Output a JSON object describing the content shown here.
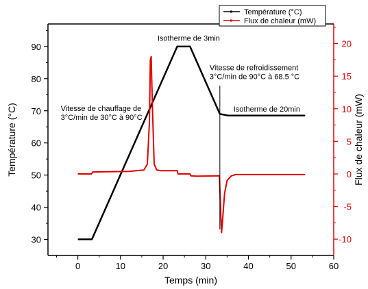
{
  "chart_data": {
    "type": "line",
    "xlabel": "Temps (min)",
    "ylabel_left": "Température (°C)",
    "ylabel_right": "Flux de chaleur (mW)",
    "xlim": [
      -7,
      60
    ],
    "ylim_left": [
      25,
      97
    ],
    "ylim_right": [
      -12.5,
      23
    ],
    "x_ticks": [
      0,
      10,
      20,
      30,
      40,
      50,
      60
    ],
    "y_left_ticks": [
      30,
      40,
      50,
      60,
      70,
      80,
      90
    ],
    "y_right_ticks": [
      -10,
      -5,
      0,
      5,
      10,
      15,
      20
    ],
    "grid": false,
    "legend_position": "top-right",
    "colors": {
      "temperature": "#000000",
      "heat_flow": "#e00000"
    },
    "series": [
      {
        "name": "Température (°C)",
        "axis": "left",
        "x": [
          0,
          3.3,
          23.3,
          26.3,
          33.3,
          35.3,
          53.3
        ],
        "y": [
          30,
          30,
          90,
          90,
          69,
          68.5,
          68.5
        ]
      },
      {
        "name": "Flux de chaleur (mW)",
        "axis": "right",
        "x": [
          0,
          3.2,
          3.5,
          12,
          15.5,
          16.3,
          16.8,
          17.0,
          17.2,
          17.5,
          17.9,
          18.5,
          19.5,
          23.3,
          23.5,
          26.3,
          26.5,
          28,
          33.2,
          33.4,
          33.7,
          34.0,
          34.4,
          35,
          36,
          37,
          53.3
        ],
        "y": [
          0,
          0,
          0.3,
          0.4,
          0.6,
          1.5,
          8,
          17.5,
          18,
          10,
          1.5,
          0.6,
          0.5,
          0.5,
          0,
          0,
          -0.3,
          -0.35,
          -0.3,
          -4,
          -9,
          -6.5,
          -3,
          -1,
          -0.3,
          -0.1,
          -0.1
        ]
      }
    ],
    "annotations": [
      {
        "text": "Isotherme de 3min",
        "lines": [
          "Isotherme de 3min"
        ],
        "x": 26,
        "y": 91.8,
        "anchor": "middle"
      },
      {
        "text": "Vitesse de refroidissement 3°C/min de 90°C à 68.5 °C",
        "lines": [
          "Vitesse de refroidissement",
          "3°C/min de 90°C à 68.5 °C"
        ],
        "x": 30.9,
        "y": 82.6,
        "anchor": "start"
      },
      {
        "text": "Isotherme de 20min",
        "lines": [
          "Isotherme de 20min"
        ],
        "x": 36.5,
        "y": 69.7,
        "anchor": "start"
      },
      {
        "text": "Vitesse de chauffage de 3°C/min de 30°C à 90°C",
        "lines": [
          "Vitesse de chauffage de",
          "3°C/min de 30°C à 90°C"
        ],
        "x": -4,
        "y": 70,
        "anchor": "start"
      }
    ]
  }
}
